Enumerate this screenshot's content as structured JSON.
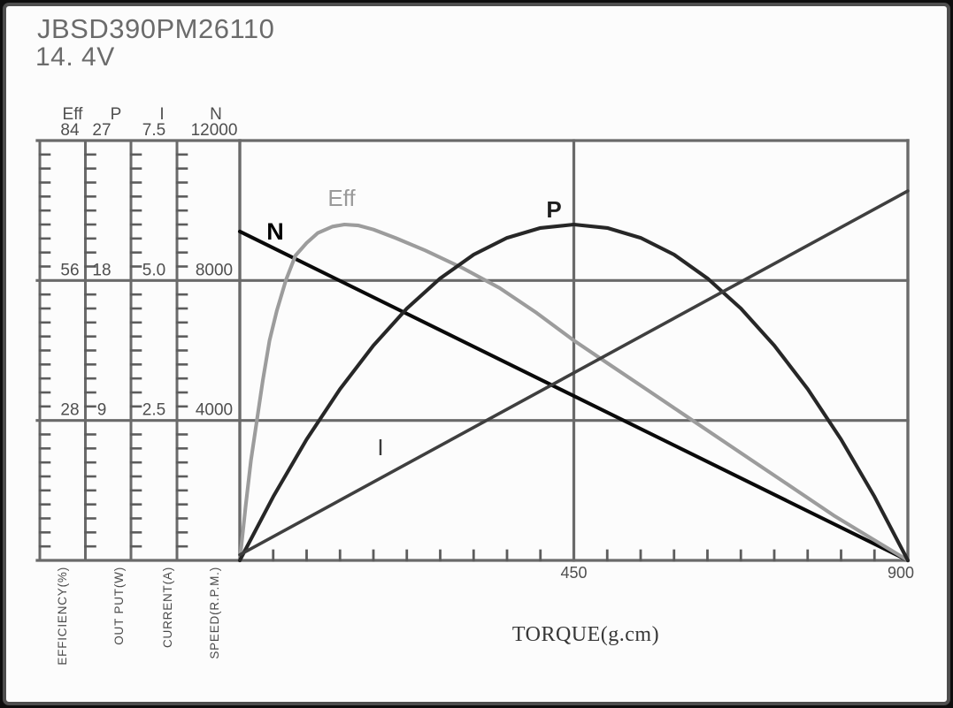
{
  "header": {
    "model": "JBSD390PM26110",
    "voltage": "14. 4V"
  },
  "chart_data": {
    "type": "line",
    "title": "JBSD390PM26110",
    "subtitle": "14. 4V",
    "xlabel": "TORQUE(g.cm)",
    "grid": "on",
    "x_axis": {
      "range": [
        0,
        900
      ],
      "major_tick_labels": [
        "450",
        "900"
      ],
      "major_tick_values": [
        450,
        900
      ],
      "minor_divisions": 20
    },
    "y_axes": [
      {
        "id": "eff",
        "header": "Eff",
        "axis_title": "EFFICIENCY(%)",
        "range": [
          0,
          84
        ],
        "tick_labels": [
          "84",
          "56",
          "28"
        ]
      },
      {
        "id": "p",
        "header": "P",
        "axis_title": "OUT PUT(W)",
        "range": [
          0,
          27
        ],
        "tick_labels": [
          "27",
          "18",
          "9"
        ]
      },
      {
        "id": "i",
        "header": "I",
        "axis_title": "CURRENT(A)",
        "range": [
          0,
          7.5
        ],
        "tick_labels": [
          "7.5",
          "5.0",
          "2.5"
        ]
      },
      {
        "id": "n",
        "header": "N",
        "axis_title": "SPEED(R.P.M.)",
        "range": [
          0,
          12000
        ],
        "tick_labels": [
          "12000",
          "8000",
          "4000"
        ]
      }
    ],
    "series": [
      {
        "name": "N",
        "axis": "n",
        "color": "#0a0a0a",
        "label_color": "#000000",
        "label_weight": "700",
        "points": [
          [
            0,
            9400
          ],
          [
            900,
            0
          ]
        ]
      },
      {
        "name": "Eff",
        "axis": "eff",
        "color": "#9c9c9c",
        "label_color": "#9a9a9a",
        "label_weight": "400",
        "points": [
          [
            0,
            0
          ],
          [
            8,
            11
          ],
          [
            15,
            20
          ],
          [
            23,
            28
          ],
          [
            31,
            36
          ],
          [
            40,
            44
          ],
          [
            50,
            50
          ],
          [
            62,
            56
          ],
          [
            75,
            61
          ],
          [
            90,
            63.5
          ],
          [
            105,
            65.5
          ],
          [
            125,
            66.8
          ],
          [
            141,
            67.2
          ],
          [
            160,
            67
          ],
          [
            180,
            66.2
          ],
          [
            210,
            64.5
          ],
          [
            250,
            62
          ],
          [
            300,
            58.5
          ],
          [
            350,
            54.5
          ],
          [
            400,
            49.5
          ],
          [
            450,
            44
          ],
          [
            500,
            39
          ],
          [
            550,
            34
          ],
          [
            600,
            29
          ],
          [
            650,
            24
          ],
          [
            700,
            19
          ],
          [
            750,
            14
          ],
          [
            800,
            9
          ],
          [
            850,
            4.5
          ],
          [
            900,
            0
          ]
        ]
      },
      {
        "name": "P",
        "axis": "p",
        "color": "#272727",
        "label_color": "#1f1f1f",
        "label_weight": "600",
        "points": [
          [
            0,
            0
          ],
          [
            45,
            4.1
          ],
          [
            90,
            7.78
          ],
          [
            135,
            11.02
          ],
          [
            180,
            13.82
          ],
          [
            225,
            16.2
          ],
          [
            270,
            18.14
          ],
          [
            315,
            19.66
          ],
          [
            360,
            20.74
          ],
          [
            405,
            21.38
          ],
          [
            450,
            21.6
          ],
          [
            495,
            21.38
          ],
          [
            540,
            20.74
          ],
          [
            585,
            19.66
          ],
          [
            630,
            18.14
          ],
          [
            675,
            16.2
          ],
          [
            720,
            13.82
          ],
          [
            765,
            11.02
          ],
          [
            810,
            7.78
          ],
          [
            855,
            4.1
          ],
          [
            900,
            0
          ]
        ]
      },
      {
        "name": "I",
        "axis": "i",
        "color": "#3f3f3f",
        "label_color": "#3a3a3a",
        "label_weight": "500",
        "points": [
          [
            0,
            0.1
          ],
          [
            900,
            6.6
          ]
        ]
      }
    ],
    "colors": {
      "grid": "#6a6a6a",
      "tick": "#5c5c5c",
      "scale_text": "#4f4f4f",
      "axis_title_text": "#4a4a4a"
    }
  }
}
